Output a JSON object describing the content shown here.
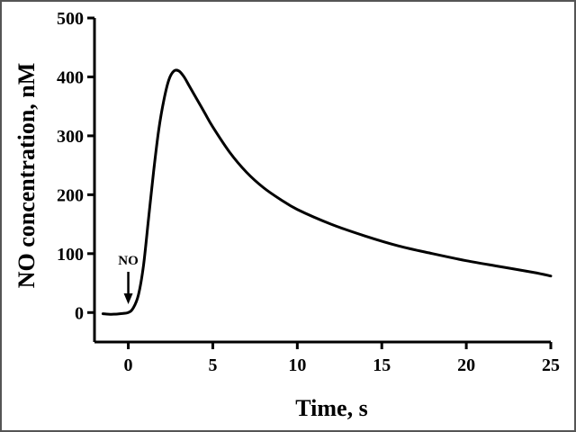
{
  "chart_data": {
    "type": "line",
    "xlabel": "Time, s",
    "ylabel": "NO concentration, nM",
    "xlim": [
      -2,
      25
    ],
    "ylim": [
      -50,
      500
    ],
    "x_ticks": [
      0,
      5,
      10,
      15,
      20,
      25
    ],
    "y_ticks": [
      0,
      100,
      200,
      300,
      400,
      500
    ],
    "x_tick_labels": [
      "0",
      "5",
      "10",
      "15",
      "20",
      "25"
    ],
    "y_tick_labels": [
      "0",
      "100",
      "200",
      "300",
      "400",
      "500"
    ],
    "grid": false,
    "series": [
      {
        "x": [
          -1.5,
          -1.0,
          -0.5,
          0.0,
          0.3,
          0.6,
          0.9,
          1.2,
          1.5,
          1.8,
          2.1,
          2.4,
          2.7,
          3.0,
          3.3,
          3.6,
          4.0,
          4.5,
          5.0,
          6.0,
          7.0,
          8.0,
          9.0,
          10.0,
          12.0,
          14.0,
          16.0,
          18.0,
          20.0,
          22.0,
          24.0,
          25.0
        ],
        "y": [
          -2,
          -3,
          -2,
          0,
          8,
          30,
          80,
          160,
          240,
          310,
          360,
          395,
          410,
          410,
          400,
          385,
          365,
          340,
          315,
          272,
          238,
          212,
          192,
          175,
          150,
          130,
          113,
          100,
          88,
          78,
          68,
          62
        ]
      }
    ],
    "annotations": [
      {
        "text": "NO",
        "x": 0,
        "arrow": "down"
      }
    ]
  }
}
